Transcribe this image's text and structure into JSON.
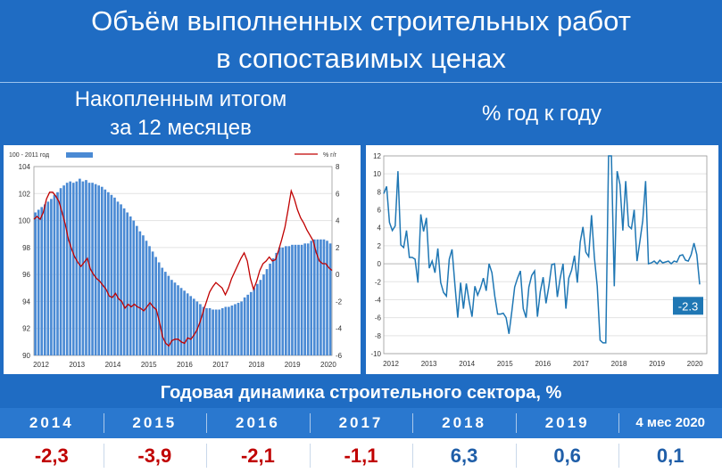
{
  "header": {
    "title_line1": "Объём выполненных строительных работ",
    "title_line2": "в сопоставимых ценах",
    "left_subtitle_line1": "Накопленным итогом",
    "left_subtitle_line2": "за 12 месяцев",
    "right_subtitle": "% год к году"
  },
  "colors": {
    "bar": "#4a8ad4",
    "line_red": "#c00000",
    "line_blue": "#1f77b4",
    "negative": "#c00000",
    "positive": "#1f5ea8",
    "background": "#1f6cc3"
  },
  "chart_data": [
    {
      "type": "bar+line",
      "legend": {
        "bar_label": "100 - 2011 год",
        "line_label": "% г/г"
      },
      "x_ticks": [
        "2012",
        "2013",
        "2014",
        "2015",
        "2016",
        "2017",
        "2018",
        "2019",
        "2020"
      ],
      "y_left": {
        "ylim": [
          90,
          104
        ],
        "ticks": [
          "90",
          "92",
          "94",
          "96",
          "98",
          "100",
          "102",
          "104"
        ]
      },
      "y_right": {
        "ylim": [
          -6,
          8
        ],
        "ticks": [
          "-6",
          "-4",
          "-2",
          "0",
          "2",
          "4",
          "6",
          "8"
        ]
      },
      "series": [
        {
          "name": "100 - 2011 год",
          "kind": "bar",
          "axis": "left",
          "values": [
            100.6,
            100.8,
            101.0,
            101.2,
            101.4,
            101.6,
            101.9,
            102.1,
            102.4,
            102.6,
            102.8,
            102.9,
            102.8,
            102.9,
            103.1,
            102.9,
            103.0,
            102.8,
            102.8,
            102.7,
            102.6,
            102.5,
            102.3,
            102.1,
            101.9,
            101.7,
            101.4,
            101.2,
            100.9,
            100.6,
            100.3,
            100.0,
            99.6,
            99.2,
            98.9,
            98.5,
            98.1,
            97.7,
            97.3,
            96.9,
            96.5,
            96.2,
            95.9,
            95.6,
            95.4,
            95.2,
            95.0,
            94.8,
            94.6,
            94.4,
            94.2,
            94.0,
            93.8,
            93.6,
            93.5,
            93.5,
            93.4,
            93.4,
            93.4,
            93.5,
            93.6,
            93.6,
            93.7,
            93.8,
            93.9,
            94.0,
            94.3,
            94.5,
            94.7,
            95.0,
            95.3,
            95.6,
            96.0,
            96.4,
            96.8,
            97.2,
            97.6,
            98.0,
            98.0,
            98.1,
            98.1,
            98.2,
            98.2,
            98.2,
            98.2,
            98.3,
            98.3,
            98.5,
            98.6,
            98.6,
            98.6,
            98.6,
            98.5,
            98.3
          ]
        },
        {
          "name": "% г/г",
          "kind": "line",
          "axis": "right",
          "values": [
            4.1,
            4.3,
            4.1,
            4.6,
            5.6,
            6.1,
            6.1,
            5.8,
            5.4,
            4.6,
            3.7,
            2.6,
            1.9,
            1.3,
            0.9,
            0.6,
            0.9,
            1.2,
            0.4,
            0.0,
            -0.3,
            -0.5,
            -0.8,
            -1.1,
            -1.6,
            -1.7,
            -1.4,
            -1.8,
            -2.0,
            -2.5,
            -2.2,
            -2.4,
            -2.2,
            -2.4,
            -2.5,
            -2.7,
            -2.4,
            -2.1,
            -2.4,
            -2.6,
            -3.5,
            -4.6,
            -5.1,
            -5.3,
            -4.9,
            -4.8,
            -4.8,
            -5.0,
            -5.1,
            -4.7,
            -4.8,
            -4.5,
            -4.1,
            -3.5,
            -2.7,
            -2.0,
            -1.3,
            -0.9,
            -0.6,
            -0.8,
            -1.0,
            -1.5,
            -1.0,
            -0.3,
            0.2,
            0.7,
            1.2,
            1.6,
            1.0,
            -0.3,
            -1.1,
            -0.5,
            0.3,
            0.8,
            1.0,
            1.3,
            1.0,
            1.1,
            1.8,
            2.6,
            3.5,
            4.8,
            6.2,
            5.6,
            4.8,
            4.2,
            3.8,
            3.3,
            2.9,
            2.5,
            1.6,
            1.0,
            0.8,
            0.8,
            0.5,
            0.3
          ]
        }
      ]
    },
    {
      "type": "line",
      "x_ticks": [
        "2012",
        "2013",
        "2014",
        "2015",
        "2016",
        "2017",
        "2018",
        "2019",
        "2020"
      ],
      "ylim": [
        -10,
        12
      ],
      "y_ticks": [
        "-10",
        "-8",
        "-6",
        "-4",
        "-2",
        "0",
        "2",
        "4",
        "6",
        "8",
        "10",
        "12"
      ],
      "annotation": "-2.3",
      "series": [
        {
          "name": "% г/г",
          "values": [
            7.8,
            8.6,
            4.6,
            3.7,
            4.2,
            10.3,
            2.1,
            1.8,
            3.7,
            0.7,
            0.7,
            0.5,
            -2.1,
            5.5,
            3.6,
            5.1,
            -0.5,
            0.3,
            -1.0,
            1.7,
            -2.1,
            -3.2,
            -3.6,
            0.5,
            1.6,
            -2.3,
            -6.0,
            -2.1,
            -5.0,
            -2.2,
            -4.2,
            -5.9,
            -2.5,
            -3.5,
            -2.7,
            -1.6,
            -3.0,
            0.0,
            -1.0,
            -3.6,
            -5.6,
            -5.6,
            -5.5,
            -6.0,
            -7.8,
            -5.3,
            -2.6,
            -1.6,
            -0.8,
            -5.0,
            -6.0,
            -2.6,
            -1.3,
            -0.8,
            -5.9,
            -3.1,
            -1.5,
            -4.4,
            -2.5,
            -0.1,
            0.0,
            -3.7,
            -1.6,
            0.0,
            -5.0,
            -1.6,
            -0.7,
            0.9,
            -2.1,
            2.4,
            4.1,
            1.3,
            0.8,
            5.4,
            0.7,
            -2.5,
            -8.5,
            -8.8,
            -8.8,
            12.0,
            12.0,
            -2.5,
            10.3,
            8.8,
            3.7,
            9.2,
            4.2,
            3.9,
            6.0,
            0.3,
            2.5,
            4.8,
            9.2,
            0.0,
            0.1,
            0.3,
            0.0,
            0.4,
            0.1,
            0.2,
            0.3,
            0.0,
            0.3,
            0.2,
            0.9,
            1.0,
            0.4,
            0.3,
            1.0,
            2.3,
            1.0,
            -2.3
          ]
        }
      ]
    }
  ],
  "summary": {
    "heading": "Годовая динамика строительного сектора, %",
    "years": [
      "2014",
      "2015",
      "2016",
      "2017",
      "2018",
      "2019",
      "4 мес 2020"
    ],
    "values": [
      "-2,3",
      "-3,9",
      "-2,1",
      "-1,1",
      "6,3",
      "0,6",
      "0,1"
    ],
    "value_signs": [
      "neg",
      "neg",
      "neg",
      "neg",
      "pos",
      "pos",
      "pos"
    ]
  }
}
